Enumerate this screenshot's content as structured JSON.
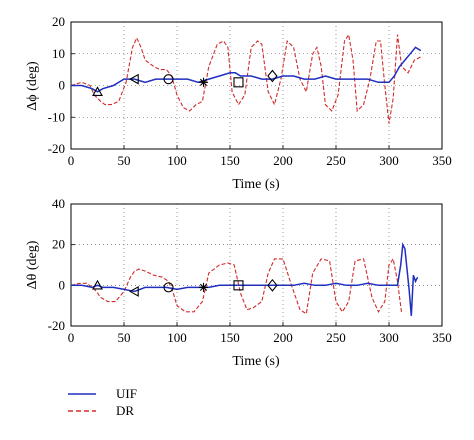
{
  "chart_data": [
    {
      "type": "line",
      "ylabel": "Δϕ (deg)",
      "xlabel": "Time (s)",
      "xlim": [
        0,
        350
      ],
      "ylim": [
        -20,
        20
      ],
      "xticks": [
        0,
        50,
        100,
        150,
        200,
        250,
        300,
        350
      ],
      "yticks": [
        -20,
        -10,
        0,
        10,
        20
      ],
      "grid": true,
      "series": [
        {
          "name": "UIF",
          "color": "#1f2fbf",
          "style": "solid",
          "x": [
            0,
            10,
            20,
            25,
            30,
            40,
            50,
            60,
            70,
            80,
            90,
            100,
            110,
            120,
            130,
            140,
            150,
            155,
            160,
            170,
            180,
            190,
            200,
            210,
            220,
            230,
            240,
            250,
            260,
            270,
            280,
            290,
            300,
            305,
            310,
            315,
            320,
            325,
            330
          ],
          "y": [
            0,
            0,
            -1,
            -2,
            -1,
            0,
            2,
            2,
            1,
            2,
            2,
            2,
            2,
            1,
            2,
            3,
            4,
            4,
            3,
            3,
            2,
            2,
            3,
            3,
            2,
            2,
            3,
            2,
            2,
            2,
            2,
            1,
            1,
            3,
            6,
            8,
            10,
            12,
            11
          ]
        },
        {
          "name": "DR",
          "color": "#d12b2b",
          "style": "dashed",
          "x": [
            0,
            10,
            18,
            22,
            28,
            32,
            38,
            45,
            52,
            58,
            62,
            66,
            70,
            78,
            84,
            90,
            95,
            100,
            106,
            112,
            118,
            124,
            130,
            138,
            144,
            148,
            152,
            158,
            164,
            170,
            176,
            180,
            186,
            192,
            198,
            204,
            210,
            216,
            222,
            228,
            232,
            236,
            240,
            246,
            252,
            258,
            262,
            266,
            270,
            276,
            282,
            288,
            292,
            296,
            300,
            304,
            308,
            312,
            318,
            324,
            330
          ],
          "y": [
            0,
            1,
            0,
            -3,
            -5,
            -6,
            -6,
            -5,
            1,
            12,
            15,
            12,
            8,
            6,
            5,
            5,
            3,
            -3,
            -7,
            -8,
            -6,
            -5,
            6,
            13,
            14,
            12,
            -2,
            -6,
            -3,
            12,
            14,
            13,
            -2,
            -6,
            2,
            14,
            12,
            2,
            -2,
            10,
            12,
            6,
            -6,
            -8,
            -3,
            14,
            16,
            8,
            -8,
            -6,
            2,
            14,
            14,
            0,
            -12,
            -4,
            16,
            6,
            4,
            8,
            9
          ]
        }
      ],
      "markers": [
        {
          "x": 25,
          "y": -2,
          "shape": "triangle"
        },
        {
          "x": 60,
          "y": 2,
          "shape": "left-triangle"
        },
        {
          "x": 92,
          "y": 2,
          "shape": "circle"
        },
        {
          "x": 125,
          "y": 1,
          "shape": "star"
        },
        {
          "x": 158,
          "y": 1,
          "shape": "square"
        },
        {
          "x": 190,
          "y": 3,
          "shape": "diamond"
        }
      ]
    },
    {
      "type": "line",
      "ylabel": "Δθ (deg)",
      "xlabel": "Time (s)",
      "xlim": [
        0,
        350
      ],
      "ylim": [
        -20,
        40
      ],
      "xticks": [
        0,
        50,
        100,
        150,
        200,
        250,
        300,
        350
      ],
      "yticks": [
        -20,
        0,
        20,
        40
      ],
      "grid": true,
      "series": [
        {
          "name": "UIF",
          "color": "#1f2fbf",
          "style": "solid",
          "x": [
            0,
            10,
            20,
            25,
            30,
            40,
            50,
            60,
            70,
            80,
            90,
            100,
            110,
            120,
            130,
            140,
            150,
            160,
            170,
            180,
            190,
            200,
            210,
            220,
            230,
            240,
            250,
            260,
            270,
            280,
            290,
            300,
            305,
            308,
            311,
            313,
            315,
            317,
            319,
            321,
            323,
            325,
            327
          ],
          "y": [
            0,
            0,
            -1,
            0,
            -1,
            -1,
            -2,
            -3,
            -1,
            -1,
            -1,
            -2,
            -1,
            -1,
            -1,
            0,
            0,
            0,
            0,
            0,
            0,
            0,
            0,
            1,
            0,
            0,
            1,
            0,
            0,
            1,
            0,
            0,
            0,
            0,
            10,
            20,
            18,
            8,
            -2,
            -15,
            5,
            2,
            4
          ]
        },
        {
          "name": "DR",
          "color": "#d12b2b",
          "style": "dashed",
          "x": [
            0,
            8,
            15,
            20,
            24,
            28,
            35,
            42,
            50,
            56,
            60,
            64,
            70,
            78,
            86,
            92,
            96,
            100,
            108,
            116,
            124,
            130,
            140,
            148,
            154,
            160,
            166,
            172,
            180,
            186,
            192,
            200,
            208,
            216,
            222,
            228,
            236,
            244,
            250,
            256,
            262,
            268,
            276,
            284,
            290,
            296,
            300,
            304,
            308,
            312
          ],
          "y": [
            0,
            1,
            1,
            -1,
            -3,
            -6,
            -8,
            -8,
            -3,
            4,
            7,
            8,
            7,
            5,
            4,
            2,
            -3,
            -10,
            -13,
            -13,
            -8,
            6,
            10,
            11,
            10,
            -4,
            -12,
            -11,
            -8,
            6,
            13,
            13,
            0,
            -12,
            -14,
            6,
            13,
            12,
            -8,
            -13,
            -8,
            12,
            13,
            -6,
            -13,
            -8,
            10,
            13,
            2,
            -14
          ]
        }
      ],
      "markers": [
        {
          "x": 25,
          "y": 0,
          "shape": "triangle"
        },
        {
          "x": 60,
          "y": -3,
          "shape": "left-triangle"
        },
        {
          "x": 92,
          "y": -1,
          "shape": "circle"
        },
        {
          "x": 125,
          "y": -1,
          "shape": "star"
        },
        {
          "x": 158,
          "y": 0,
          "shape": "square"
        },
        {
          "x": 190,
          "y": 0,
          "shape": "diamond"
        }
      ]
    }
  ],
  "legend": {
    "entries": [
      {
        "label": "UIF",
        "color": "#1f2fbf",
        "style": "solid"
      },
      {
        "label": "DR",
        "color": "#d12b2b",
        "style": "dashed"
      }
    ]
  }
}
